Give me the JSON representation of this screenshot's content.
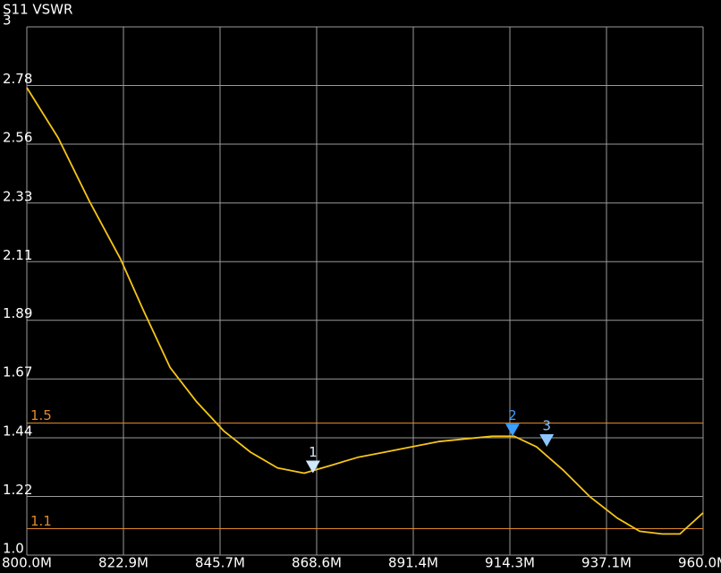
{
  "chart_data": {
    "type": "line",
    "title": "S11 VSWR",
    "xlim": [
      800,
      960
    ],
    "xticks": [
      {
        "value": 800,
        "label": "800.0M"
      },
      {
        "value": 822.857,
        "label": "822.9M"
      },
      {
        "value": 845.714,
        "label": "845.7M"
      },
      {
        "value": 868.571,
        "label": "868.6M"
      },
      {
        "value": 891.429,
        "label": "891.4M"
      },
      {
        "value": 914.286,
        "label": "914.3M"
      },
      {
        "value": 937.143,
        "label": "937.1M"
      },
      {
        "value": 960,
        "label": "960.0M"
      }
    ],
    "ylim": [
      1,
      3
    ],
    "yticks": [
      {
        "value": 1,
        "label": "1.0"
      },
      {
        "value": 1.222,
        "label": "1.22"
      },
      {
        "value": 1.444,
        "label": "1.44"
      },
      {
        "value": 1.667,
        "label": "1.67"
      },
      {
        "value": 1.889,
        "label": "1.89"
      },
      {
        "value": 2.111,
        "label": "2.11"
      },
      {
        "value": 2.333,
        "label": "2.33"
      },
      {
        "value": 2.556,
        "label": "2.56"
      },
      {
        "value": 2.778,
        "label": "2.78"
      },
      3
    ],
    "grid": true,
    "x": [
      800,
      807.4,
      814.8,
      822.2,
      827.5,
      833.9,
      840.2,
      846.6,
      852.9,
      859.3,
      865.6,
      872.0,
      878.3,
      884.7,
      891.0,
      897.4,
      903.7,
      910.1,
      915.3,
      920.6,
      927.0,
      933.3,
      939.7,
      945.0,
      950.3,
      954.5,
      960
    ],
    "series": [
      {
        "name": "S11 VSWR",
        "color": "#f5c518",
        "values": [
          2.77,
          2.58,
          2.34,
          2.12,
          1.93,
          1.71,
          1.58,
          1.47,
          1.39,
          1.33,
          1.31,
          1.34,
          1.37,
          1.39,
          1.41,
          1.43,
          1.44,
          1.45,
          1.45,
          1.41,
          1.32,
          1.22,
          1.14,
          1.09,
          1.08,
          1.08,
          1.16
        ]
      }
    ],
    "limit_lines": [
      {
        "value": 1.5,
        "color": "#e0882a"
      },
      {
        "value": 1.1,
        "color": "#e0882a"
      }
    ],
    "markers": [
      {
        "label": "1",
        "x": 867.7,
        "y": 1.31,
        "color": "#cfe9ff"
      },
      {
        "label": "2",
        "x": 914.9,
        "y": 1.45,
        "color": "#3aa0ff"
      },
      {
        "label": "3",
        "x": 923.0,
        "y": 1.41,
        "color": "#8cc8ff"
      }
    ]
  }
}
